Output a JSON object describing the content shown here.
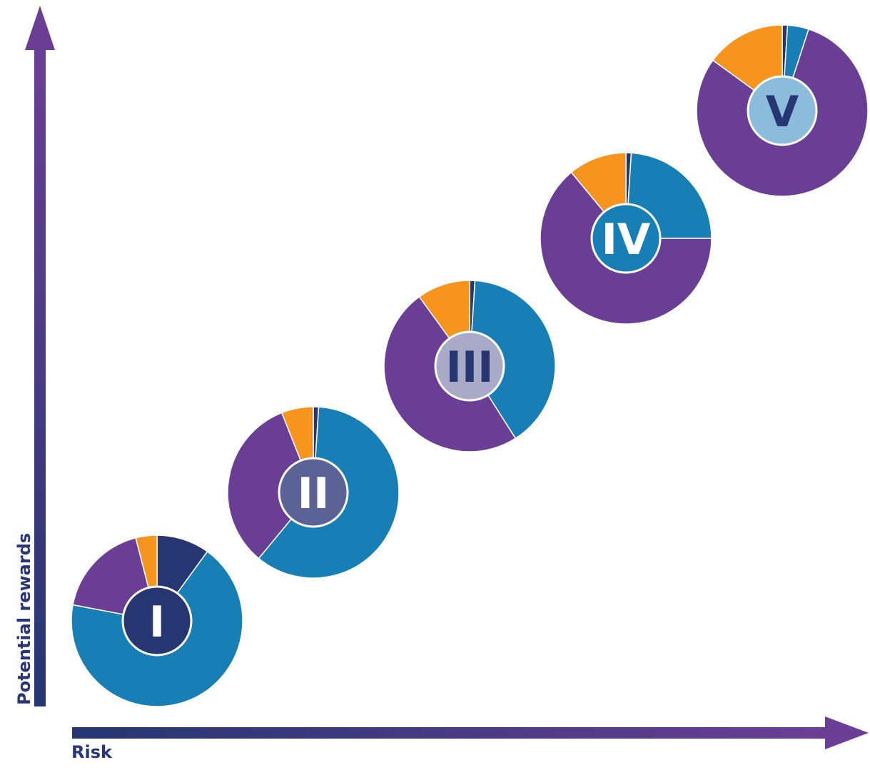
{
  "chart_data": {
    "type": "pie",
    "xlabel": "Risk",
    "ylabel": "Potential rewards",
    "series_colors": {
      "dark_navy": "#253672",
      "blue": "#177fb5",
      "purple": "#6b3e96",
      "orange": "#f6941e"
    },
    "axis_gradient": [
      "#253672",
      "#6b3e96"
    ],
    "portfolios": [
      {
        "label": "I",
        "badge_color": "#253672",
        "badge_text_color": "#ffffff",
        "slices": [
          {
            "color": "dark_navy",
            "percent": 10
          },
          {
            "color": "blue",
            "percent": 68
          },
          {
            "color": "purple",
            "percent": 18
          },
          {
            "color": "orange",
            "percent": 4
          }
        ]
      },
      {
        "label": "II",
        "badge_color": "#5b6296",
        "badge_text_color": "#ffffff",
        "slices": [
          {
            "color": "dark_navy",
            "percent": 1
          },
          {
            "color": "blue",
            "percent": 60
          },
          {
            "color": "purple",
            "percent": 33
          },
          {
            "color": "orange",
            "percent": 6
          }
        ]
      },
      {
        "label": "III",
        "badge_color": "#a9aac8",
        "badge_text_color": "#253672",
        "slices": [
          {
            "color": "dark_navy",
            "percent": 1
          },
          {
            "color": "blue",
            "percent": 40
          },
          {
            "color": "purple",
            "percent": 49
          },
          {
            "color": "orange",
            "percent": 10
          }
        ]
      },
      {
        "label": "IV",
        "badge_color": "#177fb5",
        "badge_text_color": "#ffffff",
        "slices": [
          {
            "color": "dark_navy",
            "percent": 1
          },
          {
            "color": "blue",
            "percent": 24
          },
          {
            "color": "purple",
            "percent": 64
          },
          {
            "color": "orange",
            "percent": 11
          }
        ]
      },
      {
        "label": "V",
        "badge_color": "#8cbcdb",
        "badge_text_color": "#253672",
        "slices": [
          {
            "color": "dark_navy",
            "percent": 1
          },
          {
            "color": "blue",
            "percent": 4
          },
          {
            "color": "purple",
            "percent": 80
          },
          {
            "color": "orange",
            "percent": 15
          }
        ]
      }
    ]
  }
}
